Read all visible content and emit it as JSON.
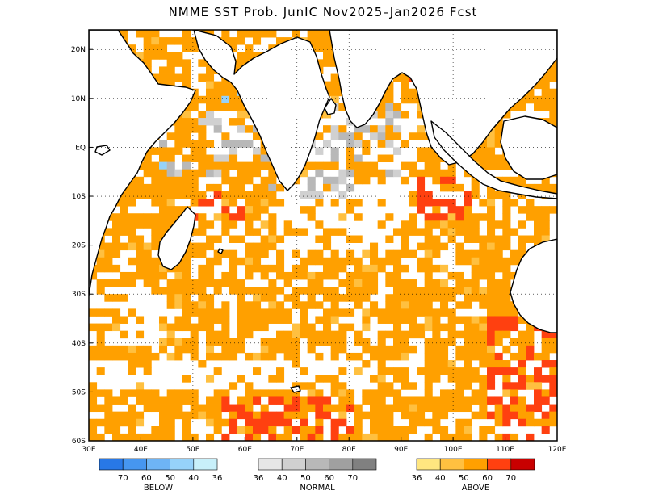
{
  "title": "NMME SST Prob. JunIC   Nov2025–Jan2026 Fcst",
  "map": {
    "lon_range": [
      30,
      120
    ],
    "lat_range": [
      -60,
      24
    ],
    "lat_ticks": [
      {
        "lat": 20,
        "label": "20N"
      },
      {
        "lat": 10,
        "label": "10N"
      },
      {
        "lat": 0,
        "label": "EQ"
      },
      {
        "lat": -10,
        "label": "10S"
      },
      {
        "lat": -20,
        "label": "20S"
      },
      {
        "lat": -30,
        "label": "30S"
      },
      {
        "lat": -40,
        "label": "40S"
      },
      {
        "lat": -50,
        "label": "50S"
      },
      {
        "lat": -60,
        "label": "60S"
      }
    ],
    "lon_ticks": [
      {
        "lon": 30,
        "label": "30E"
      },
      {
        "lon": 40,
        "label": "40E"
      },
      {
        "lon": 50,
        "label": "50E"
      },
      {
        "lon": 60,
        "label": "60E"
      },
      {
        "lon": 70,
        "label": "70E"
      },
      {
        "lon": 80,
        "label": "80E"
      },
      {
        "lon": 90,
        "label": "90E"
      },
      {
        "lon": 100,
        "label": "100E"
      },
      {
        "lon": 110,
        "label": "110E"
      },
      {
        "lon": 120,
        "label": "120E"
      }
    ],
    "grid": "dotted",
    "categories": {
      "above": {
        "colors": [
          "#ffe680",
          "#ffc040",
          "#ffa000",
          "#ff4010",
          "#c80000"
        ]
      },
      "normal": {
        "colors": [
          "#e6e6e6",
          "#d0d0d0",
          "#b8b8b8",
          "#a0a0a0",
          "#808080"
        ]
      },
      "below": {
        "colors": [
          "#2878e6",
          "#4696f0",
          "#6eb4f5",
          "#96d2fa",
          "#c8f0fa"
        ]
      }
    }
  },
  "legend": {
    "below": {
      "title": "BELOW",
      "labels": [
        "70",
        "60",
        "50",
        "40",
        "36"
      ]
    },
    "normal": {
      "title": "NORMAL",
      "labels": [
        "36",
        "40",
        "50",
        "60",
        "70"
      ]
    },
    "above": {
      "title": "ABOVE",
      "labels": [
        "36",
        "40",
        "50",
        "60",
        "70"
      ]
    }
  }
}
